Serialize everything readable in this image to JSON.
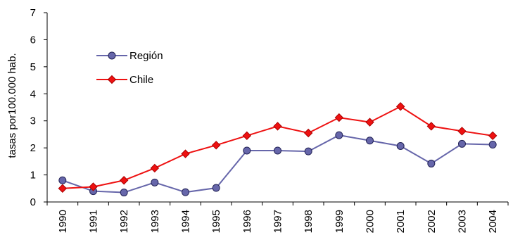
{
  "chart_data": {
    "type": "line",
    "ylabel": "tasas por100.000 hab.",
    "xlabel": "",
    "title": "",
    "ylim": [
      0,
      7
    ],
    "yticks": [
      "0",
      "1",
      "2",
      "3",
      "4",
      "5",
      "6",
      "7"
    ],
    "categories": [
      "1990",
      "1991",
      "1992",
      "1993",
      "1994",
      "1995",
      "1996",
      "1997",
      "1998",
      "1999",
      "2000",
      "2001",
      "2002",
      "2003",
      "2004"
    ],
    "grid": false,
    "legend_position": "top-left",
    "series": [
      {
        "name": "Región",
        "color": "#6666aa",
        "marker": "circle",
        "values": [
          0.8,
          0.4,
          0.35,
          0.72,
          0.36,
          0.52,
          1.9,
          1.9,
          1.87,
          2.47,
          2.27,
          2.07,
          1.42,
          2.15,
          2.12
        ]
      },
      {
        "name": "Chile",
        "color": "#ee1111",
        "marker": "diamond",
        "values": [
          0.5,
          0.56,
          0.8,
          1.25,
          1.78,
          2.1,
          2.45,
          2.8,
          2.55,
          3.12,
          2.95,
          3.53,
          2.8,
          2.62,
          2.45
        ]
      }
    ]
  }
}
